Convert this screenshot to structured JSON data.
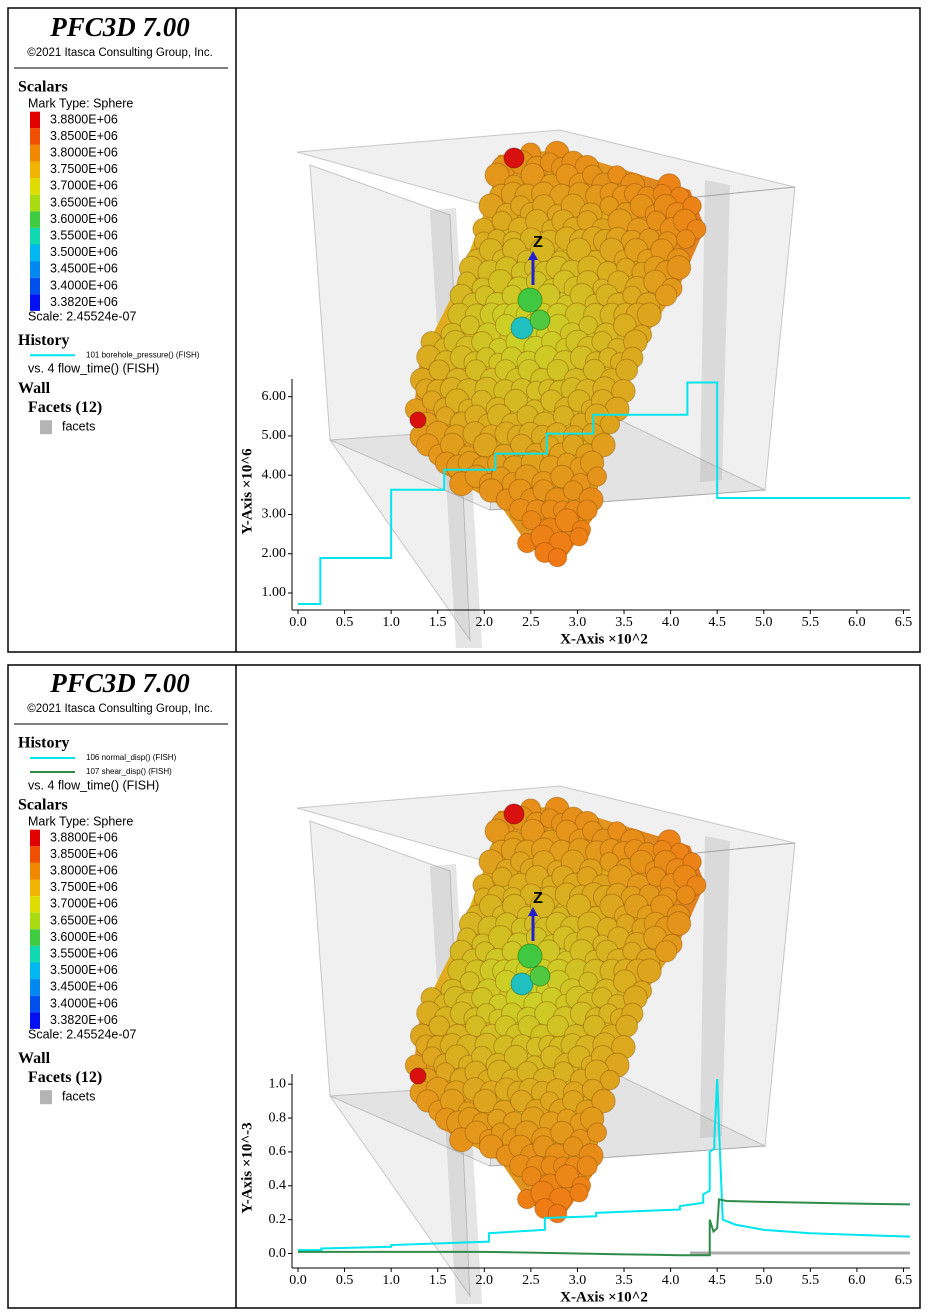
{
  "panels": [
    {
      "title": "PFC3D 7.00",
      "copyright": "©2021 Itasca Consulting Group, Inc.",
      "axis_label": "Z",
      "sections": [
        {
          "heading": "Scalars",
          "mark_type": "Mark Type: Sphere",
          "levels": [
            "3.8800E+06",
            "3.8500E+06",
            "3.8000E+06",
            "3.7500E+06",
            "3.7000E+06",
            "3.6500E+06",
            "3.6000E+06",
            "3.5500E+06",
            "3.5000E+06",
            "3.4500E+06",
            "3.4000E+06",
            "3.3820E+06"
          ],
          "colors": [
            "#e00000",
            "#f05000",
            "#f08800",
            "#f0b400",
            "#e0dc00",
            "#a8dc10",
            "#40cc40",
            "#10d8b0",
            "#00b8f0",
            "#0088f0",
            "#0050f0",
            "#0010f0"
          ],
          "scale": "Scale: 2.45524e-07"
        },
        {
          "heading": "History",
          "versus": "vs. 4 flow_time() (FISH)"
        },
        {
          "heading": "Wall",
          "group": "Facets (12)",
          "item": "facets",
          "color": "#b4b4b4"
        }
      ]
    },
    {
      "title": "PFC3D 7.00",
      "copyright": "©2021 Itasca Consulting Group, Inc.",
      "axis_label": "Z",
      "sections": [
        {
          "heading": "History",
          "versus": "vs. 4 flow_time() (FISH)"
        },
        {
          "heading": "Scalars",
          "mark_type": "Mark Type: Sphere",
          "levels": [
            "3.8800E+06",
            "3.8500E+06",
            "3.8000E+06",
            "3.7500E+06",
            "3.7000E+06",
            "3.6500E+06",
            "3.6000E+06",
            "3.5500E+06",
            "3.5000E+06",
            "3.4500E+06",
            "3.4000E+06",
            "3.3820E+06"
          ],
          "colors": [
            "#e00000",
            "#f05000",
            "#f08800",
            "#f0b400",
            "#e0dc00",
            "#a8dc10",
            "#40cc40",
            "#10d8b0",
            "#00b8f0",
            "#0088f0",
            "#0050f0",
            "#0010f0"
          ],
          "scale": "Scale: 2.45524e-07"
        },
        {
          "heading": "Wall",
          "group": "Facets (12)",
          "item": "facets",
          "color": "#b4b4b4"
        }
      ]
    }
  ],
  "chart_data": [
    {
      "type": "line",
      "x_label": "X-Axis ×10^2",
      "y_label": "Y-Axis ×10^6",
      "xlim": [
        0,
        6.57
      ],
      "ylim": [
        0.72,
        6.45
      ],
      "xticks": [
        {
          "value": 0,
          "label": "0.0"
        },
        0.5,
        {
          "value": 1,
          "label": "1.0"
        },
        1.5,
        {
          "value": 2,
          "label": "2.0"
        },
        2.5,
        {
          "value": 3,
          "label": "3.0"
        },
        3.5,
        {
          "value": 4,
          "label": "4.0"
        },
        4.5,
        {
          "value": 5,
          "label": "5.0"
        },
        5.5,
        {
          "value": 6,
          "label": "6.0"
        },
        6.5
      ],
      "yticks": [
        {
          "value": 1,
          "label": "1.00"
        },
        {
          "value": 2,
          "label": "2.00"
        },
        {
          "value": 3,
          "label": "3.00"
        },
        {
          "value": 4,
          "label": "4.00"
        },
        {
          "value": 5,
          "label": "5.00"
        },
        {
          "value": 6,
          "label": "6.00"
        }
      ],
      "series": [
        {
          "name": "101 borehole_pressure() (FISH)",
          "color": "#00e5ee",
          "x": [
            0,
            0.24,
            0.24,
            1.0,
            1.0,
            1.57,
            1.57,
            2.12,
            2.12,
            2.67,
            2.67,
            3.17,
            3.17,
            4.18,
            4.18,
            4.5,
            4.5,
            6.57
          ],
          "values": [
            0.72,
            0.72,
            1.89,
            1.89,
            3.63,
            3.63,
            4.14,
            4.14,
            4.55,
            4.55,
            5.06,
            5.06,
            5.54,
            5.54,
            6.36,
            6.36,
            3.42,
            3.42
          ]
        }
      ]
    },
    {
      "type": "line",
      "x_label": "X-Axis ×10^2",
      "y_label": "Y-Axis ×10^-3",
      "xlim": [
        0,
        6.57
      ],
      "ylim": [
        -0.05,
        1.06
      ],
      "xticks": [
        {
          "value": 0,
          "label": "0.0"
        },
        0.5,
        {
          "value": 1,
          "label": "1.0"
        },
        1.5,
        {
          "value": 2,
          "label": "2.0"
        },
        2.5,
        {
          "value": 3,
          "label": "3.0"
        },
        3.5,
        {
          "value": 4,
          "label": "4.0"
        },
        4.5,
        {
          "value": 5,
          "label": "5.0"
        },
        5.5,
        {
          "value": 6,
          "label": "6.0"
        },
        6.5
      ],
      "yticks": [
        {
          "value": 0,
          "label": "0.0"
        },
        0.2,
        0.4,
        0.6,
        0.8,
        {
          "value": 1,
          "label": "1.0"
        }
      ],
      "series": [
        {
          "name": "106 normal_disp() (FISH)",
          "color": "#00e5ee",
          "x": [
            0,
            0.25,
            0.25,
            1.0,
            1.0,
            2.05,
            2.05,
            2.65,
            2.65,
            3.2,
            3.2,
            4.1,
            4.1,
            4.35,
            4.35,
            4.42,
            4.42,
            4.47,
            4.47,
            4.5,
            4.53,
            4.56,
            4.7,
            5.0,
            5.5,
            6.0,
            6.57
          ],
          "values": [
            0.02,
            0.02,
            0.03,
            0.04,
            0.05,
            0.07,
            0.12,
            0.14,
            0.21,
            0.22,
            0.24,
            0.26,
            0.28,
            0.3,
            0.35,
            0.37,
            0.6,
            0.62,
            0.68,
            1.03,
            0.6,
            0.2,
            0.17,
            0.14,
            0.12,
            0.11,
            0.1
          ]
        },
        {
          "name": "107 shear_disp() (FISH)",
          "color": "#2e8b4a",
          "x": [
            0,
            2.0,
            2.5,
            3.0,
            3.5,
            3.9,
            4.1,
            4.4,
            4.42,
            4.42,
            4.46,
            4.5,
            4.52,
            4.6,
            5.0,
            5.5,
            6.0,
            6.57
          ],
          "values": [
            0.01,
            0.01,
            0.005,
            0.0,
            -0.005,
            -0.008,
            -0.01,
            -0.01,
            -0.01,
            0.2,
            0.13,
            0.15,
            0.32,
            0.31,
            0.305,
            0.3,
            0.295,
            0.29
          ]
        }
      ]
    }
  ]
}
